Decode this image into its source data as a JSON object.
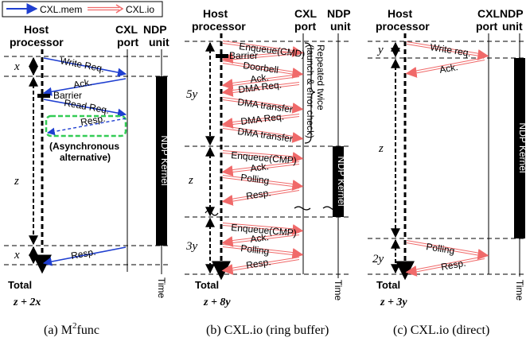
{
  "legend": {
    "mem_label": "CXL.mem",
    "io_label": "CXL.io"
  },
  "colors": {
    "mem": "#1f3fd0",
    "io": "#f06a6a",
    "async_box": "#33cc55",
    "kernel": "#000000"
  },
  "panel_a": {
    "host": [
      "Host",
      "processor"
    ],
    "cxl": [
      "CXL",
      "port"
    ],
    "ndp": [
      "NDP",
      "unit"
    ],
    "msgs": {
      "write": "Write Req.",
      "ack": "Ack.",
      "barrier": "Barrier",
      "read": "Read Req.",
      "resp_async": "Resp.",
      "resp": "Resp."
    },
    "async_note": [
      "(Asynchronous",
      "alternative)"
    ],
    "kernel": "NDP Kernel",
    "vars": {
      "x1": "x",
      "z": "z",
      "x2": "x"
    },
    "total_label": "Total",
    "total_formula": "z + 2x",
    "time": "Time",
    "caption_pre": "(a) M",
    "caption_sup": "2",
    "caption_post": "func"
  },
  "panel_b": {
    "host": [
      "Host",
      "processor"
    ],
    "cxl": [
      "CXL",
      "port"
    ],
    "ndp": [
      "NDP",
      "unit"
    ],
    "msgs": {
      "enq1": "Enqueue(CMD)",
      "barrier": "Barrier",
      "doorbell": "Doorbell",
      "ack1": "Ack.",
      "dma_req1": "DMA Req.",
      "dma_tr1": "DMA transfer",
      "dma_req2": "DMA Req.",
      "dma_tr2": "DMA transfer",
      "enq2": "Enqueue(CMP)",
      "ack2": "Ack.",
      "poll2": "Polling",
      "resp2": "Resp.",
      "enq3": "Enqueue(CMP)",
      "ack3": "Ack.",
      "poll3": "Polling",
      "resp3": "Resp."
    },
    "side_note": [
      "Repeated twice",
      "(launch & error check)"
    ],
    "kernel": "NDP Kernel",
    "vars": {
      "v1": "5y",
      "v2": "z",
      "v3": "3y"
    },
    "total_label": "Total",
    "total_formula": "z + 8y",
    "time": "Time",
    "caption": "(b) CXL.io (ring buffer)"
  },
  "panel_c": {
    "host": [
      "Host",
      "processor"
    ],
    "cxl": [
      "CXL",
      "port"
    ],
    "ndp": [
      "NDP",
      "unit"
    ],
    "msgs": {
      "write": "Write req.",
      "ack": "Ack.",
      "poll": "Polling",
      "resp": "Resp."
    },
    "kernel": "NDP Kernel",
    "vars": {
      "v1": "y",
      "v2": "z",
      "v3": "2y"
    },
    "total_label": "Total",
    "total_formula": "z + 3y",
    "time": "Time",
    "caption": "(c) CXL.io (direct)"
  }
}
